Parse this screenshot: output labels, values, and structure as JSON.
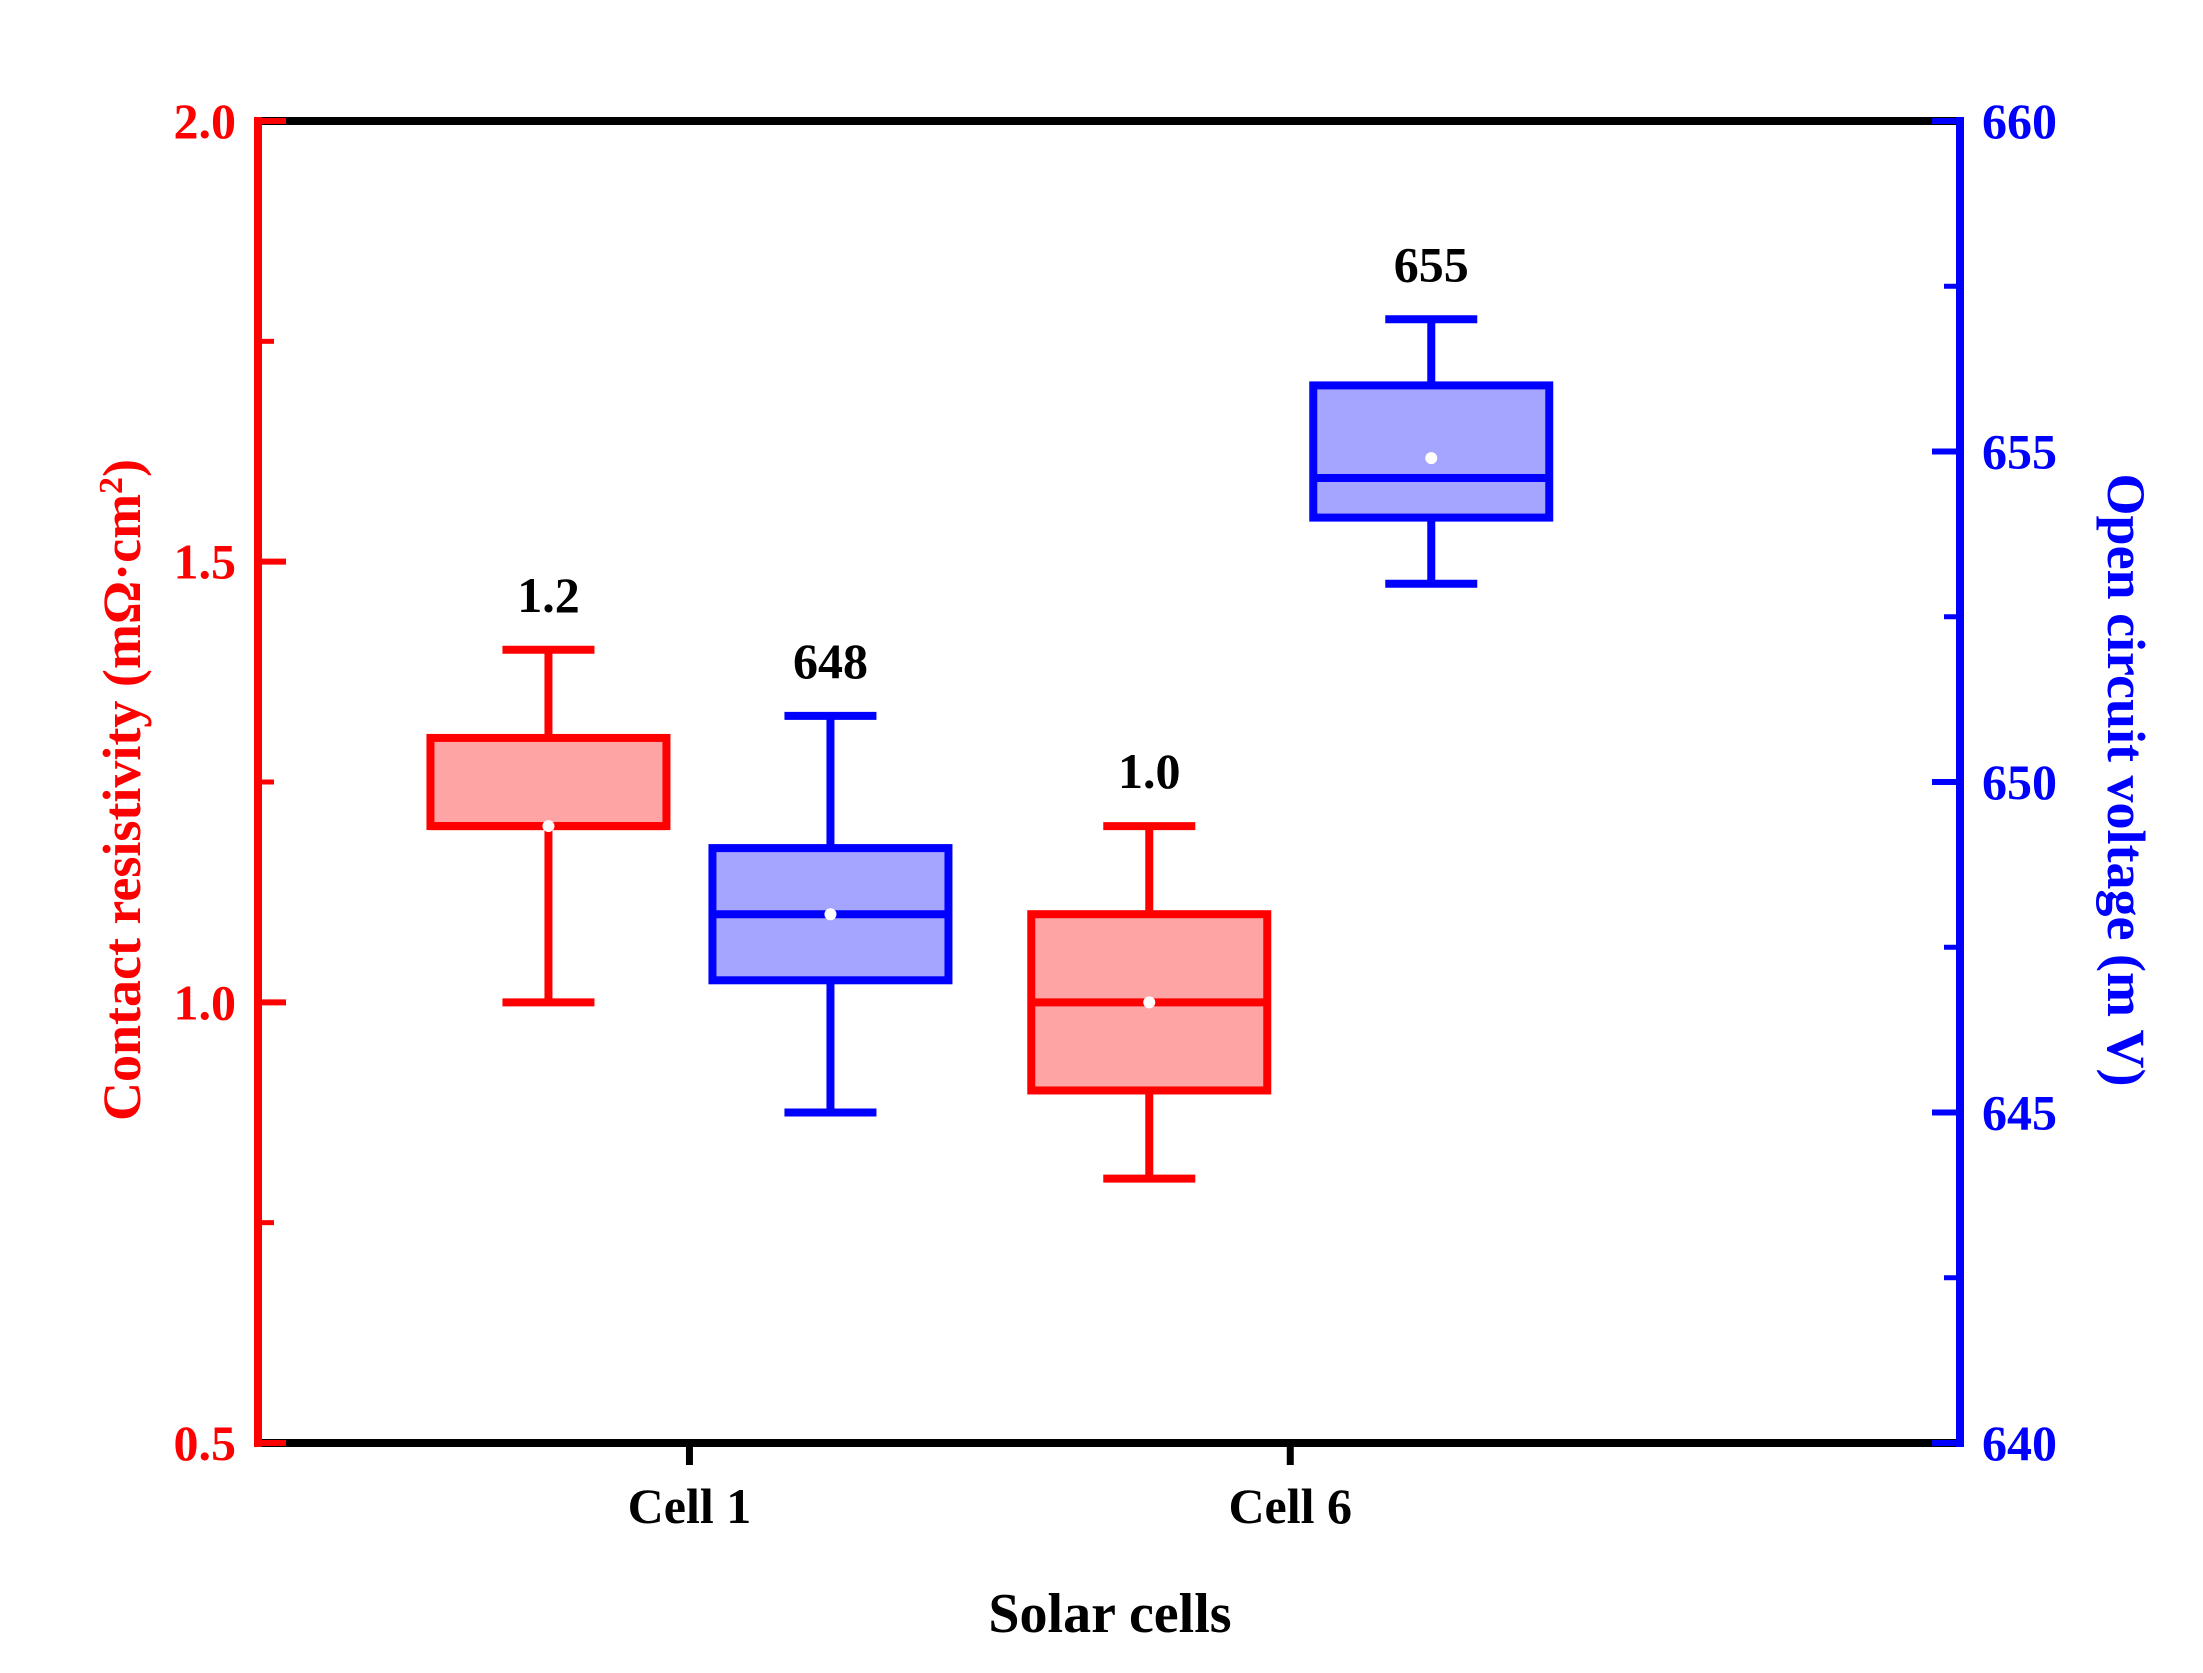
{
  "chart_data": {
    "type": "box",
    "xlabel": "Solar cells",
    "categories": [
      "Cell 1",
      "Cell 6"
    ],
    "left_axis": {
      "label": "Contact resistivity (mΩ·cm",
      "label_superscript": "2",
      "label_close": ")",
      "ylim": [
        0.5,
        2.0
      ],
      "ticks": [
        "0.5",
        "1.0",
        "1.5",
        "2.0"
      ],
      "tick_values": [
        0.5,
        1.0,
        1.5,
        2.0
      ],
      "minor_tick_values": [
        0.75,
        1.25,
        1.75
      ],
      "color": "#ff0000"
    },
    "right_axis": {
      "label": "Open circuit voltage (m V)",
      "ylim": [
        640,
        660
      ],
      "ticks": [
        "640",
        "645",
        "650",
        "655",
        "660"
      ],
      "tick_values": [
        640,
        645,
        650,
        655,
        660
      ],
      "minor_tick_values": [
        642.5,
        647.5,
        652.5,
        657.5
      ],
      "color": "#0000ff"
    },
    "series": [
      {
        "name": "Contact resistivity",
        "axis": "left",
        "stroke": "#ff0000",
        "fill": "#ffa4a4",
        "boxes": [
          {
            "category": "Cell 1",
            "min": 1.0,
            "q1": 1.2,
            "median": 1.2,
            "q3": 1.3,
            "max": 1.4,
            "mean": 1.2,
            "label": "1.2"
          },
          {
            "category": "Cell 6",
            "min": 0.8,
            "q1": 0.9,
            "median": 1.0,
            "q3": 1.1,
            "max": 1.2,
            "mean": 1.0,
            "label": "1.0"
          }
        ]
      },
      {
        "name": "Open circuit voltage",
        "axis": "right",
        "stroke": "#0000ff",
        "fill": "#a5a5ff",
        "boxes": [
          {
            "category": "Cell 1",
            "min": 645,
            "q1": 647,
            "median": 648,
            "q3": 649,
            "max": 651,
            "mean": 648,
            "label": "648"
          },
          {
            "category": "Cell 6",
            "min": 653,
            "q1": 654,
            "median": 654.6,
            "q3": 656,
            "max": 657,
            "mean": 654.9,
            "label": "655"
          }
        ]
      }
    ]
  }
}
